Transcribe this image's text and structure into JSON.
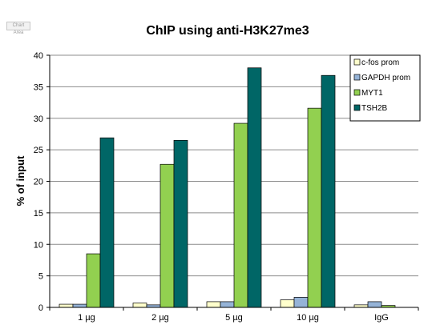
{
  "chart_area_label": "Chart Area",
  "chart_data": {
    "type": "bar",
    "title": "ChIP using anti-H3K27me3",
    "xlabel": "",
    "ylabel": "% of input",
    "ylim": [
      0,
      40
    ],
    "yticks": [
      0,
      5,
      10,
      15,
      20,
      25,
      30,
      35,
      40
    ],
    "grid": true,
    "legend_position": "top-right",
    "categories": [
      "1 µg",
      "2 µg",
      "5 µg",
      "10 µg",
      "IgG"
    ],
    "series": [
      {
        "name": "c-fos prom",
        "color": "#ffffcc",
        "values": [
          0.5,
          0.7,
          0.9,
          1.2,
          0.4
        ]
      },
      {
        "name": "GAPDH prom",
        "color": "#95b3d7",
        "values": [
          0.5,
          0.4,
          0.9,
          1.6,
          0.9
        ]
      },
      {
        "name": "MYT1",
        "color": "#92d050",
        "values": [
          8.5,
          22.7,
          29.2,
          31.6,
          0.3
        ]
      },
      {
        "name": "TSH2B",
        "color": "#006666",
        "values": [
          26.9,
          26.5,
          38.0,
          36.8,
          0.0
        ]
      }
    ]
  }
}
